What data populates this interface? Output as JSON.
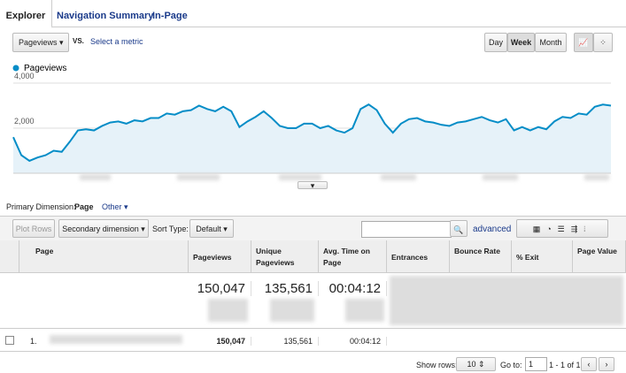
{
  "tabs": [
    "Explorer",
    "Navigation Summary",
    "In-Page"
  ],
  "metric_selector": "Pageviews",
  "vs": "VS.",
  "select_metric": "Select a metric",
  "period_buttons": [
    "Day",
    "Week",
    "Month"
  ],
  "chart_data": {
    "type": "line",
    "series": [
      {
        "name": "Pageviews",
        "color": "#058dc7",
        "values": [
          1600,
          800,
          550,
          700,
          800,
          1000,
          950,
          1400,
          1900,
          1950,
          1900,
          2100,
          2250,
          2300,
          2200,
          2350,
          2300,
          2450,
          2450,
          2650,
          2600,
          2750,
          2800,
          3000,
          2850,
          2750,
          2950,
          2750,
          2050,
          2300,
          2500,
          2750,
          2450,
          2100,
          2000,
          2000,
          2200,
          2200,
          2000,
          2100,
          1900,
          1800,
          2000,
          2850,
          3050,
          2800,
          2200,
          1800,
          2200,
          2400,
          2450,
          2300,
          2250,
          2150,
          2100,
          2250,
          2300,
          2400,
          2500,
          2350,
          2250,
          2400,
          1900,
          2050,
          1900,
          2050,
          1950,
          2300,
          2500,
          2450,
          2650,
          2600,
          2950,
          3050,
          3000
        ]
      }
    ],
    "ylim": [
      0,
      4000
    ],
    "yticks": [
      {
        "value": 2000,
        "label": "2,000"
      },
      {
        "value": 4000,
        "label": "4,000"
      }
    ]
  },
  "primary_dimension": {
    "label": "Primary Dimension:",
    "selected": "Page",
    "other": "Other"
  },
  "toolbar": {
    "plot_rows": "Plot Rows",
    "secondary_dimension": "Secondary dimension",
    "sort_type_label": "Sort Type:",
    "sort_type": "Default",
    "advanced": "advanced"
  },
  "table": {
    "headers": [
      "Page",
      "Pageviews",
      "Unique Pageviews",
      "Avg. Time on Page",
      "Entrances",
      "Bounce Rate",
      "% Exit",
      "Page Value"
    ],
    "totals": [
      "150,047",
      "135,561",
      "00:04:12"
    ],
    "rows": [
      [
        "1.",
        "150,047",
        "135,561",
        "00:04:12"
      ]
    ]
  },
  "pagination": {
    "show_rows_label": "Show rows:",
    "show_rows": "10",
    "go_to_label": "Go to:",
    "go_to": "1",
    "range": "1 - 1 of 1"
  }
}
